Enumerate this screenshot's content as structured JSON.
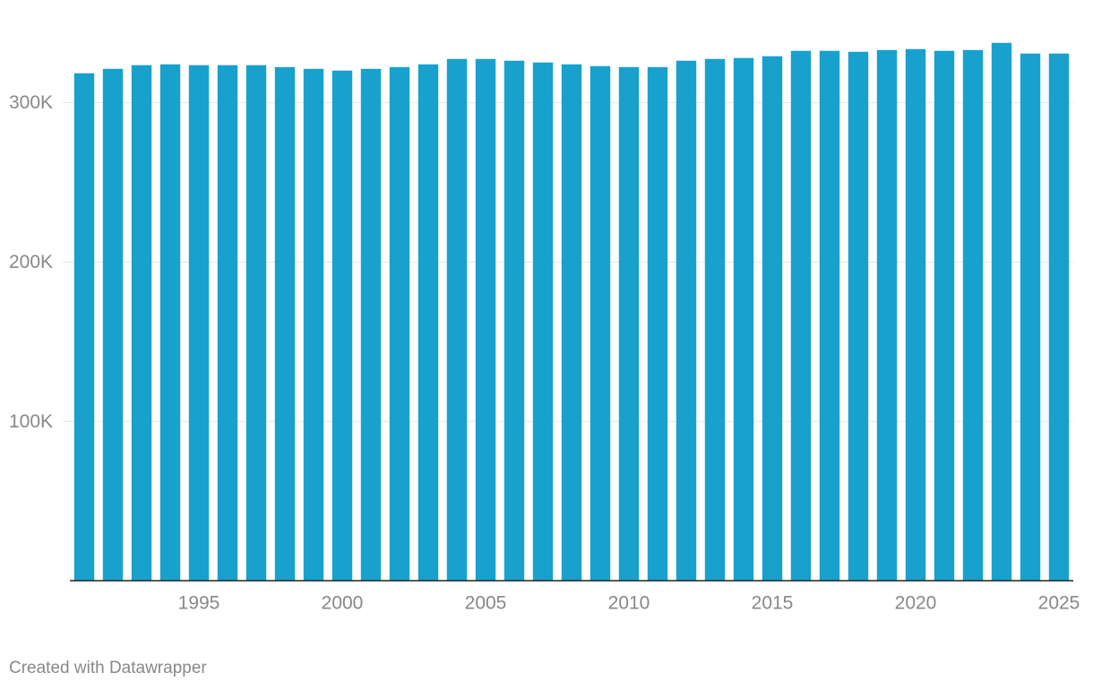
{
  "chart_data": {
    "type": "bar",
    "categories": [
      null,
      null,
      null,
      null,
      "1995",
      null,
      null,
      null,
      null,
      "2000",
      null,
      null,
      null,
      null,
      "2005",
      null,
      null,
      null,
      null,
      "2010",
      null,
      null,
      null,
      null,
      "2015",
      null,
      null,
      null,
      null,
      "2020",
      null,
      null,
      null,
      null,
      "2025"
    ],
    "values": [
      318500,
      321300,
      323600,
      324100,
      323600,
      323600,
      323600,
      322400,
      321300,
      320200,
      321300,
      322400,
      324100,
      327500,
      327500,
      326400,
      325300,
      324100,
      323000,
      322400,
      322400,
      326400,
      327500,
      328100,
      329200,
      332600,
      332600,
      332000,
      333100,
      333700,
      332600,
      333100,
      337600,
      330900,
      330900
    ],
    "color": "#18a1cd",
    "ylim": [
      0,
      342000
    ],
    "yticks": [
      {
        "value": 100000,
        "label": "100K"
      },
      {
        "value": 200000,
        "label": "200K"
      },
      {
        "value": 300000,
        "label": "300K"
      }
    ],
    "grid": true,
    "footer": "Created with Datawrapper"
  }
}
